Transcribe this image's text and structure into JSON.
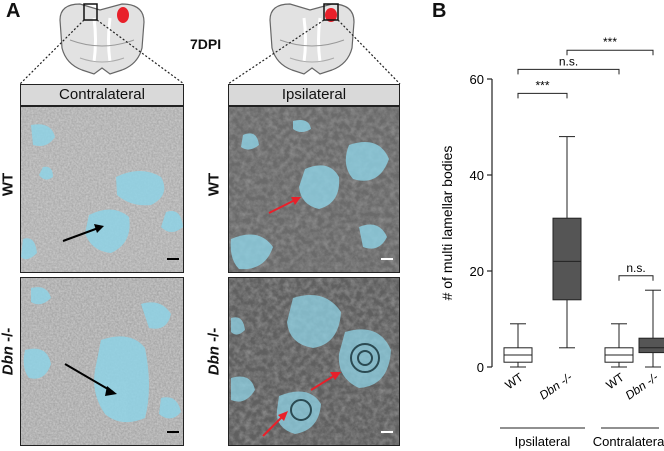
{
  "panel_a": {
    "letter": "A",
    "timepoint": "7DPI",
    "columns": [
      "Contralateral",
      "Ipsilateral"
    ],
    "rows": [
      {
        "genotype": "WT",
        "suffix": ""
      },
      {
        "genotype": "Dbn",
        "suffix": " -/-"
      }
    ],
    "colors": {
      "lesion_marker": "#e8202a",
      "annotation_overlay": "#8fd3e6",
      "black_arrow": "#000000",
      "red_arrow": "#e8202a"
    }
  },
  "panel_b": {
    "letter": "B"
  },
  "chart_data": {
    "type": "boxplot",
    "ylabel": "# of multi lamellar bodies",
    "ylim": [
      0,
      60
    ],
    "yticks": [
      0,
      20,
      40,
      60
    ],
    "categories": [
      "WT",
      "Dbn -/-",
      "WT",
      "Dbn -/-"
    ],
    "category_italic": [
      false,
      true,
      false,
      true
    ],
    "groups": [
      {
        "label": "Ipsilateral",
        "members": [
          0,
          1
        ]
      },
      {
        "label": "Contralateral",
        "members": [
          2,
          3
        ]
      }
    ],
    "boxes": [
      {
        "min": 0,
        "q1": 1,
        "median": 2.5,
        "q3": 4,
        "max": 9,
        "fill": "#ffffff"
      },
      {
        "min": 4,
        "q1": 14,
        "median": 22,
        "q3": 31,
        "max": 48,
        "fill": "#555555"
      },
      {
        "min": 0,
        "q1": 1,
        "median": 2.5,
        "q3": 4,
        "max": 9,
        "fill": "#ffffff"
      },
      {
        "min": 0,
        "q1": 3,
        "median": 4,
        "q3": 6,
        "max": 16,
        "fill": "#555555"
      }
    ],
    "significance": [
      {
        "from": 0,
        "to": 1,
        "label": "***",
        "y": 57
      },
      {
        "from": 0,
        "to": 2,
        "label": "n.s.",
        "y": 62
      },
      {
        "from": 1,
        "to": 3,
        "label": "***",
        "y": 66
      },
      {
        "from": 2,
        "to": 3,
        "label": "n.s.",
        "y": 19
      }
    ]
  }
}
